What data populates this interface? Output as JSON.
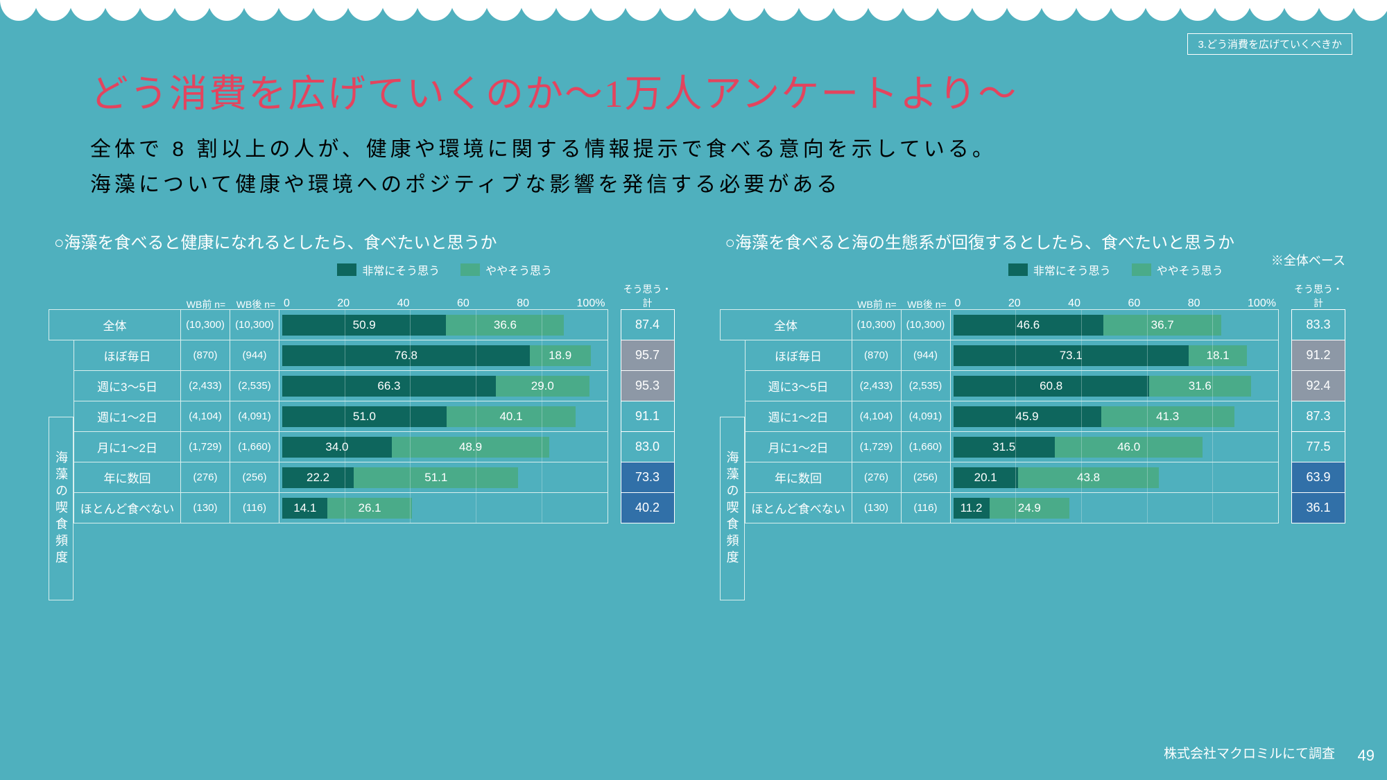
{
  "breadcrumb": "3.どう消費を広げていくべきか",
  "title": "どう消費を広げていくのか～1万人アンケートより～",
  "subtitle_line1": "全体で 8 割以上の人が、健康や環境に関する情報提示で食べる意向を示している。",
  "subtitle_line2": "海藻について健康や環境へのポジティブな影響を発信する必要がある",
  "footer_note": "株式会社マクロミルにて調査",
  "page_number": "49",
  "y_axis_label": "海藻の喫食頻度",
  "colors": {
    "bg": "#4fb0be",
    "accent": "#e3445e",
    "bar_dark": "#0e665d",
    "bar_light": "#4aab89",
    "total_normal": "#4fb0be",
    "total_high": "#8d98a6",
    "total_low": "#3170a8",
    "border": "#d9efee"
  },
  "legend": {
    "strong": "非常にそう思う",
    "some": "ややそう思う"
  },
  "axis_ticks": [
    "0",
    "20",
    "40",
    "60",
    "80",
    "100%"
  ],
  "header": {
    "wb_before": "WB前\nn=",
    "wb_after": "WB後\nn=",
    "total_label": "そう思う・計"
  },
  "row_labels": {
    "total": "全体",
    "r1": "ほぼ毎日",
    "r2": "週に3～5日",
    "r3": "週に1～2日",
    "r4": "月に1～2日",
    "r5": "年に数回",
    "r6": "ほとんど食べない"
  },
  "chart1": {
    "title": "○海藻を食べると健康になれるとしたら、食べたいと思うか",
    "rows": [
      {
        "key": "total",
        "n1": "(10,300)",
        "n2": "(10,300)",
        "v1": 50.9,
        "v2": 36.6,
        "total": "87.4",
        "tcolor": "#4fb0be"
      },
      {
        "key": "r1",
        "n1": "(870)",
        "n2": "(944)",
        "v1": 76.8,
        "v2": 18.9,
        "total": "95.7",
        "tcolor": "#8d98a6"
      },
      {
        "key": "r2",
        "n1": "(2,433)",
        "n2": "(2,535)",
        "v1": 66.3,
        "v2": 29.0,
        "total": "95.3",
        "tcolor": "#8d98a6"
      },
      {
        "key": "r3",
        "n1": "(4,104)",
        "n2": "(4,091)",
        "v1": 51.0,
        "v2": 40.1,
        "total": "91.1",
        "tcolor": "#4fb0be"
      },
      {
        "key": "r4",
        "n1": "(1,729)",
        "n2": "(1,660)",
        "v1": 34.0,
        "v2": 48.9,
        "total": "83.0",
        "tcolor": "#4fb0be"
      },
      {
        "key": "r5",
        "n1": "(276)",
        "n2": "(256)",
        "v1": 22.2,
        "v2": 51.1,
        "total": "73.3",
        "tcolor": "#3170a8"
      },
      {
        "key": "r6",
        "n1": "(130)",
        "n2": "(116)",
        "v1": 14.1,
        "v2": 26.1,
        "total": "40.2",
        "tcolor": "#3170a8"
      }
    ]
  },
  "chart2": {
    "title": "○海藻を食べると海の生態系が回復するとしたら、食べたいと思うか",
    "note": "※全体ベース",
    "rows": [
      {
        "key": "total",
        "n1": "(10,300)",
        "n2": "(10,300)",
        "v1": 46.6,
        "v2": 36.7,
        "total": "83.3",
        "tcolor": "#4fb0be"
      },
      {
        "key": "r1",
        "n1": "(870)",
        "n2": "(944)",
        "v1": 73.1,
        "v2": 18.1,
        "total": "91.2",
        "tcolor": "#8d98a6"
      },
      {
        "key": "r2",
        "n1": "(2,433)",
        "n2": "(2,535)",
        "v1": 60.8,
        "v2": 31.6,
        "total": "92.4",
        "tcolor": "#8d98a6"
      },
      {
        "key": "r3",
        "n1": "(4,104)",
        "n2": "(4,091)",
        "v1": 45.9,
        "v2": 41.3,
        "total": "87.3",
        "tcolor": "#4fb0be"
      },
      {
        "key": "r4",
        "n1": "(1,729)",
        "n2": "(1,660)",
        "v1": 31.5,
        "v2": 46.0,
        "total": "77.5",
        "tcolor": "#4fb0be"
      },
      {
        "key": "r5",
        "n1": "(276)",
        "n2": "(256)",
        "v1": 20.1,
        "v2": 43.8,
        "total": "63.9",
        "tcolor": "#3170a8"
      },
      {
        "key": "r6",
        "n1": "(130)",
        "n2": "(116)",
        "v1": 11.2,
        "v2": 24.9,
        "total": "36.1",
        "tcolor": "#3170a8"
      }
    ]
  }
}
